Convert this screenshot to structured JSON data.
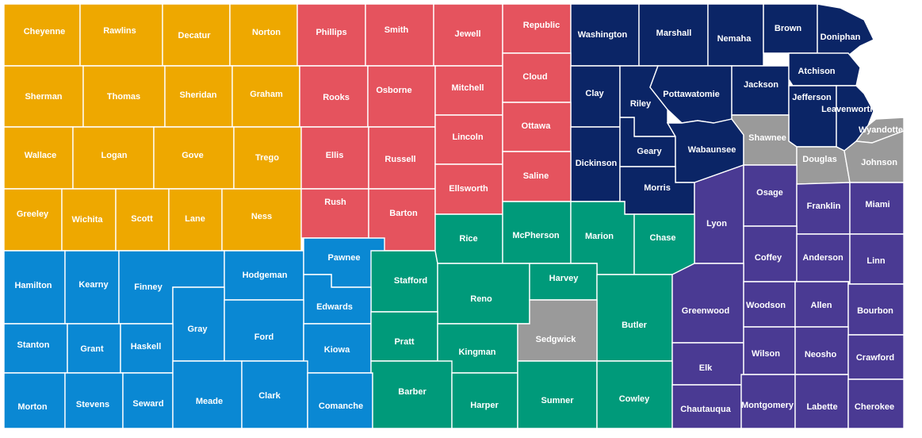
{
  "colors": {
    "yellow": "#EEA800",
    "red": "#E5535E",
    "navy": "#0B2566",
    "blue": "#0A88D3",
    "green": "#009A7A",
    "purple": "#4A3A93",
    "gray": "#9A9A9A"
  },
  "counties": [
    {
      "name": "Cheyenne",
      "region": "yellow"
    },
    {
      "name": "Rawlins",
      "region": "yellow"
    },
    {
      "name": "Decatur",
      "region": "yellow"
    },
    {
      "name": "Norton",
      "region": "yellow"
    },
    {
      "name": "Phillips",
      "region": "red"
    },
    {
      "name": "Smith",
      "region": "red"
    },
    {
      "name": "Jewell",
      "region": "red"
    },
    {
      "name": "Republic",
      "region": "red"
    },
    {
      "name": "Washington",
      "region": "navy"
    },
    {
      "name": "Marshall",
      "region": "navy"
    },
    {
      "name": "Nemaha",
      "region": "navy"
    },
    {
      "name": "Brown",
      "region": "navy"
    },
    {
      "name": "Doniphan",
      "region": "navy"
    },
    {
      "name": "Sherman",
      "region": "yellow"
    },
    {
      "name": "Thomas",
      "region": "yellow"
    },
    {
      "name": "Sheridan",
      "region": "yellow"
    },
    {
      "name": "Graham",
      "region": "yellow"
    },
    {
      "name": "Rooks",
      "region": "red"
    },
    {
      "name": "Osborne",
      "region": "red"
    },
    {
      "name": "Mitchell",
      "region": "red"
    },
    {
      "name": "Cloud",
      "region": "red"
    },
    {
      "name": "Clay",
      "region": "navy"
    },
    {
      "name": "Riley",
      "region": "navy"
    },
    {
      "name": "Pottawatomie",
      "region": "navy"
    },
    {
      "name": "Jackson",
      "region": "navy"
    },
    {
      "name": "Atchison",
      "region": "navy"
    },
    {
      "name": "Jefferson",
      "region": "navy"
    },
    {
      "name": "Leavenworth",
      "region": "navy"
    },
    {
      "name": "Wyandotte",
      "region": "gray"
    },
    {
      "name": "Wallace",
      "region": "yellow"
    },
    {
      "name": "Logan",
      "region": "yellow"
    },
    {
      "name": "Gove",
      "region": "yellow"
    },
    {
      "name": "Trego",
      "region": "yellow"
    },
    {
      "name": "Ellis",
      "region": "red"
    },
    {
      "name": "Russell",
      "region": "red"
    },
    {
      "name": "Lincoln",
      "region": "red"
    },
    {
      "name": "Ottawa",
      "region": "red"
    },
    {
      "name": "Dickinson",
      "region": "navy"
    },
    {
      "name": "Geary",
      "region": "navy"
    },
    {
      "name": "Wabaunsee",
      "region": "navy"
    },
    {
      "name": "Shawnee",
      "region": "gray"
    },
    {
      "name": "Douglas",
      "region": "gray"
    },
    {
      "name": "Johnson",
      "region": "gray"
    },
    {
      "name": "Greeley",
      "region": "yellow"
    },
    {
      "name": "Wichita",
      "region": "yellow"
    },
    {
      "name": "Scott",
      "region": "yellow"
    },
    {
      "name": "Lane",
      "region": "yellow"
    },
    {
      "name": "Ness",
      "region": "yellow"
    },
    {
      "name": "Rush",
      "region": "red"
    },
    {
      "name": "Barton",
      "region": "red"
    },
    {
      "name": "Ellsworth",
      "region": "red"
    },
    {
      "name": "Saline",
      "region": "red"
    },
    {
      "name": "Morris",
      "region": "navy"
    },
    {
      "name": "Lyon",
      "region": "purple"
    },
    {
      "name": "Osage",
      "region": "purple"
    },
    {
      "name": "Franklin",
      "region": "purple"
    },
    {
      "name": "Miami",
      "region": "purple"
    },
    {
      "name": "Hamilton",
      "region": "blue"
    },
    {
      "name": "Kearny",
      "region": "blue"
    },
    {
      "name": "Finney",
      "region": "blue"
    },
    {
      "name": "Hodgeman",
      "region": "blue"
    },
    {
      "name": "Pawnee",
      "region": "blue"
    },
    {
      "name": "Stafford",
      "region": "green"
    },
    {
      "name": "Rice",
      "region": "green"
    },
    {
      "name": "McPherson",
      "region": "green"
    },
    {
      "name": "Marion",
      "region": "green"
    },
    {
      "name": "Chase",
      "region": "green"
    },
    {
      "name": "Coffey",
      "region": "purple"
    },
    {
      "name": "Anderson",
      "region": "purple"
    },
    {
      "name": "Linn",
      "region": "purple"
    },
    {
      "name": "Gray",
      "region": "blue"
    },
    {
      "name": "Edwards",
      "region": "blue"
    },
    {
      "name": "Reno",
      "region": "green"
    },
    {
      "name": "Harvey",
      "region": "green"
    },
    {
      "name": "Butler",
      "region": "green"
    },
    {
      "name": "Greenwood",
      "region": "purple"
    },
    {
      "name": "Woodson",
      "region": "purple"
    },
    {
      "name": "Allen",
      "region": "purple"
    },
    {
      "name": "Bourbon",
      "region": "purple"
    },
    {
      "name": "Stanton",
      "region": "blue"
    },
    {
      "name": "Grant",
      "region": "blue"
    },
    {
      "name": "Haskell",
      "region": "blue"
    },
    {
      "name": "Ford",
      "region": "blue"
    },
    {
      "name": "Kiowa",
      "region": "blue"
    },
    {
      "name": "Pratt",
      "region": "green"
    },
    {
      "name": "Kingman",
      "region": "green"
    },
    {
      "name": "Sedgwick",
      "region": "gray"
    },
    {
      "name": "Elk",
      "region": "purple"
    },
    {
      "name": "Wilson",
      "region": "purple"
    },
    {
      "name": "Neosho",
      "region": "purple"
    },
    {
      "name": "Crawford",
      "region": "purple"
    },
    {
      "name": "Morton",
      "region": "blue"
    },
    {
      "name": "Stevens",
      "region": "blue"
    },
    {
      "name": "Seward",
      "region": "blue"
    },
    {
      "name": "Meade",
      "region": "blue"
    },
    {
      "name": "Clark",
      "region": "blue"
    },
    {
      "name": "Comanche",
      "region": "blue"
    },
    {
      "name": "Barber",
      "region": "green"
    },
    {
      "name": "Harper",
      "region": "green"
    },
    {
      "name": "Sumner",
      "region": "green"
    },
    {
      "name": "Cowley",
      "region": "green"
    },
    {
      "name": "Chautauqua",
      "region": "purple"
    },
    {
      "name": "Montgomery",
      "region": "purple"
    },
    {
      "name": "Labette",
      "region": "purple"
    },
    {
      "name": "Cherokee",
      "region": "purple"
    }
  ]
}
